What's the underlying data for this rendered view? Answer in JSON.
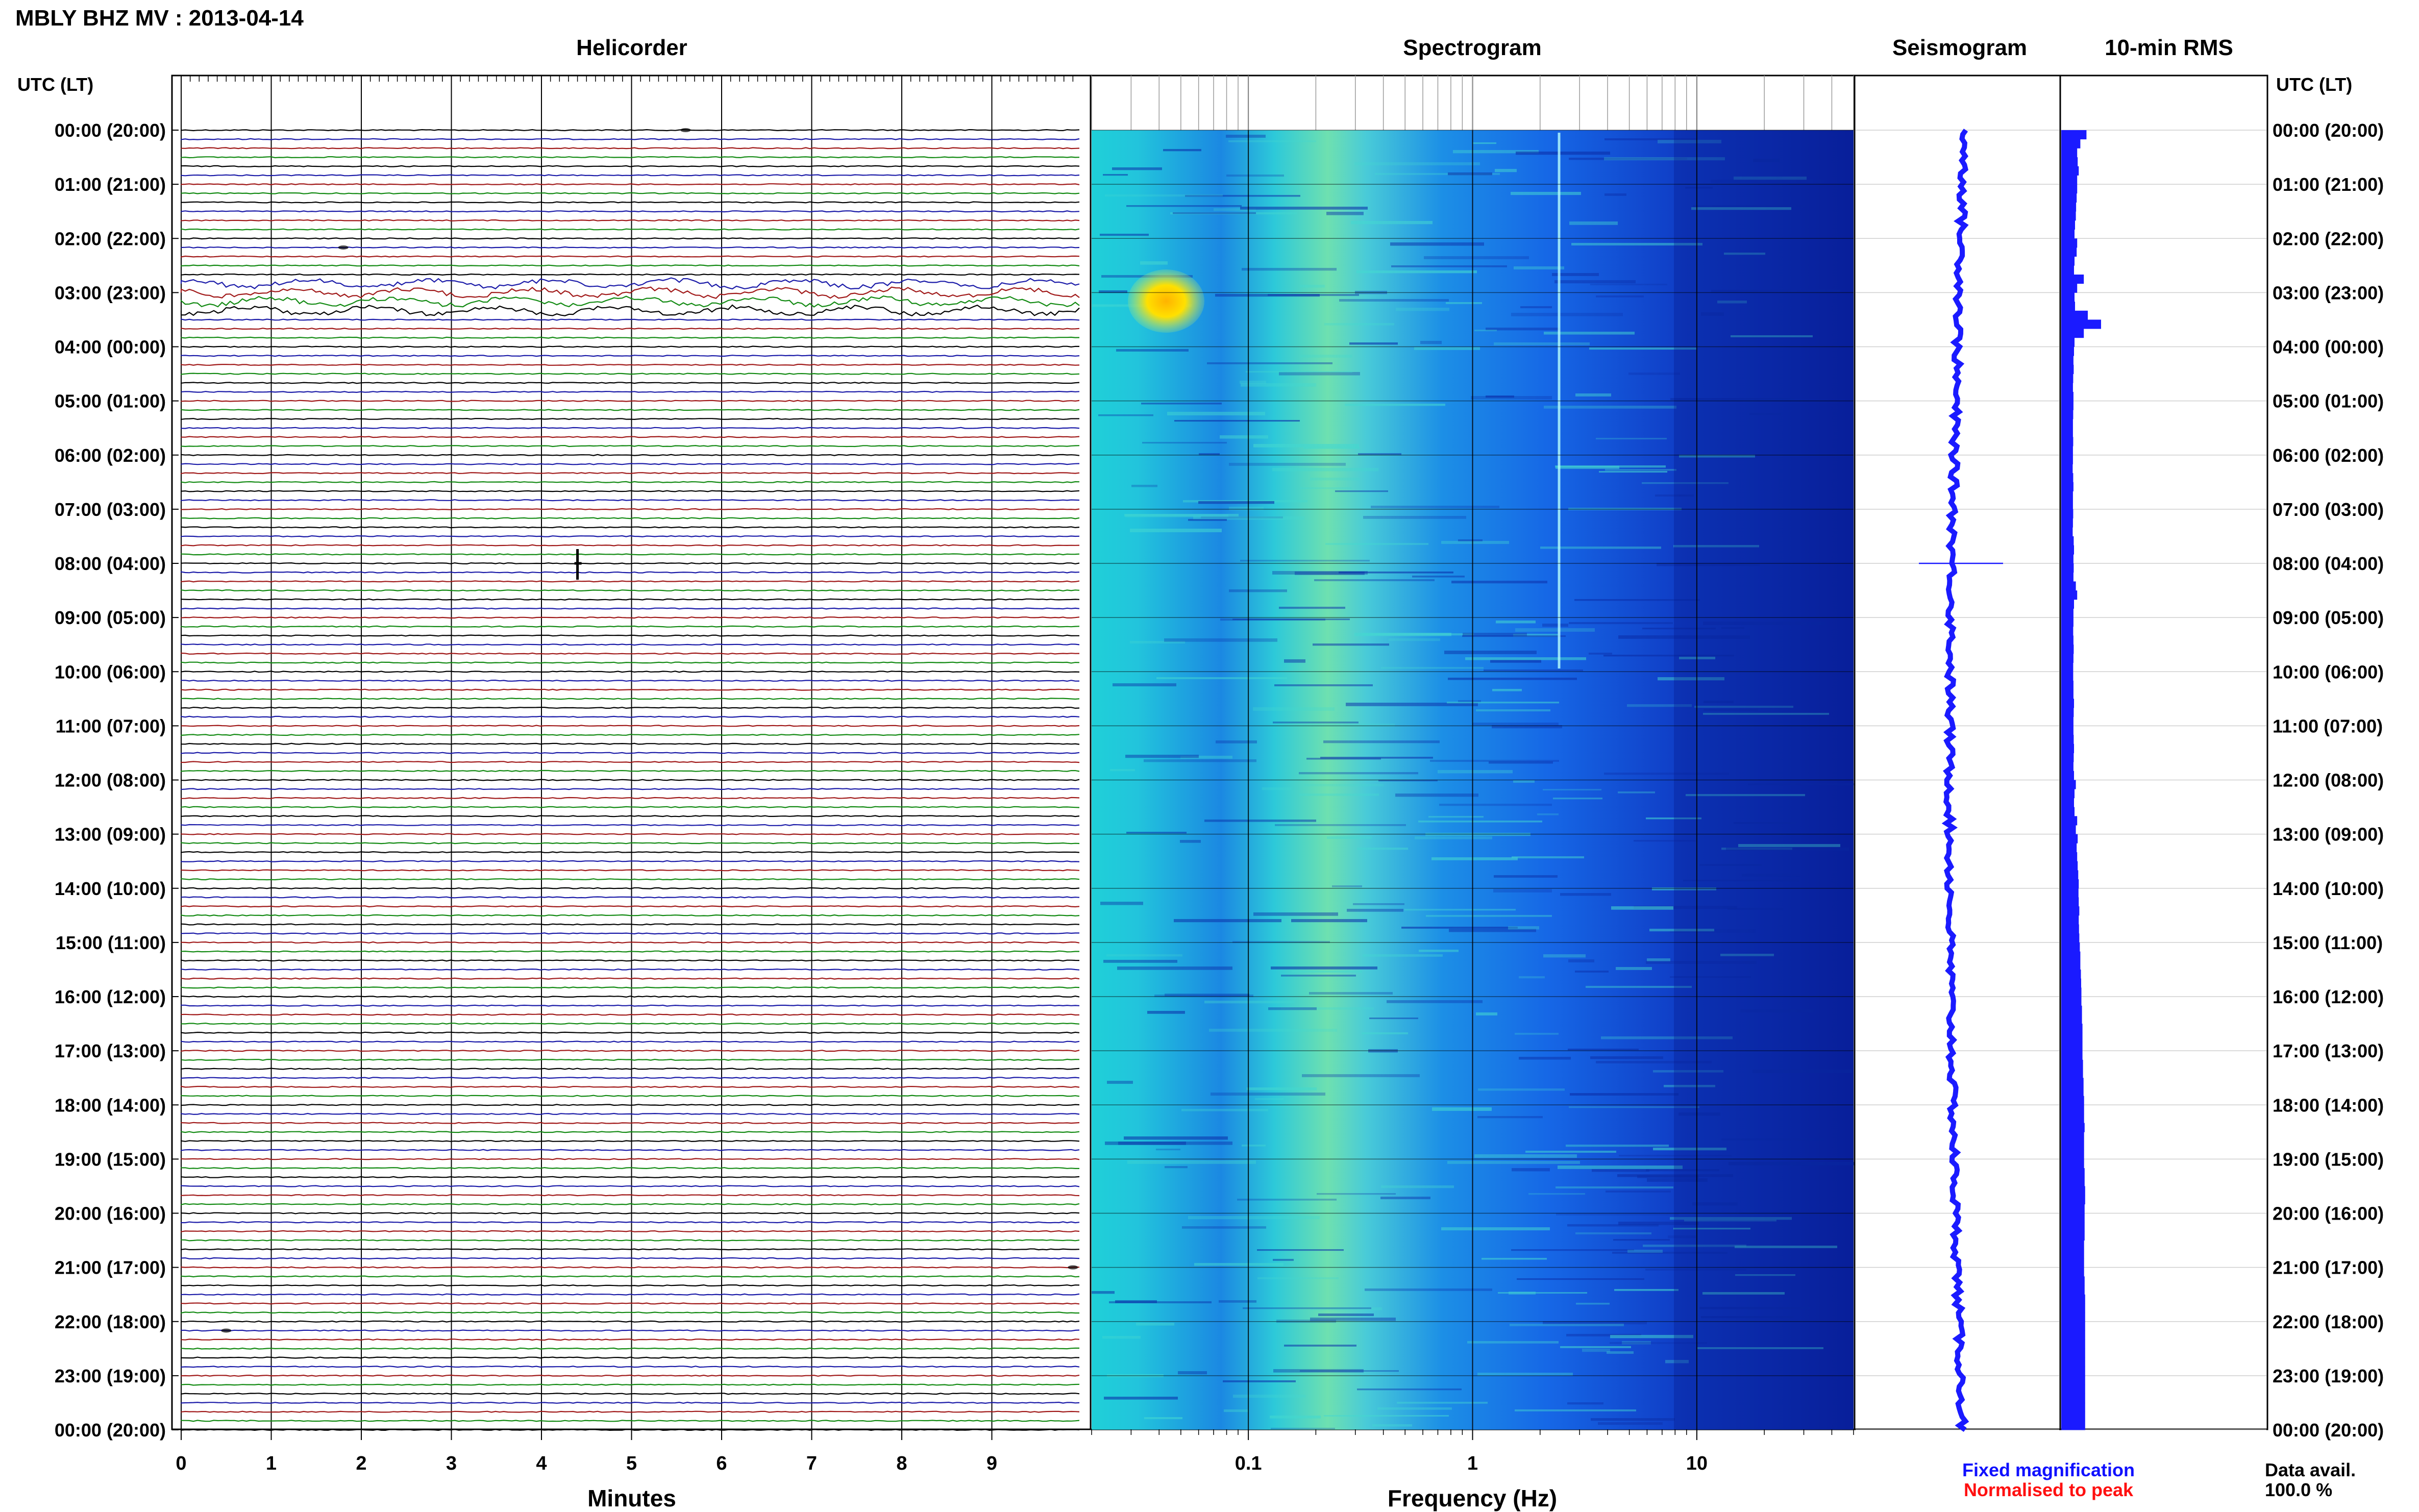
{
  "page": {
    "title": "MBLY BHZ MV : 2013-04-14"
  },
  "panels": {
    "helicorder": "Helicorder",
    "spectrogram": "Spectrogram",
    "seismogram": "Seismogram",
    "rms": "10-min RMS"
  },
  "axis_header_left": "UTC (LT)",
  "axis_header_right": "UTC (LT)",
  "time_labels": [
    "00:00 (20:00)",
    "01:00 (21:00)",
    "02:00 (22:00)",
    "03:00 (23:00)",
    "04:00 (00:00)",
    "05:00 (01:00)",
    "06:00 (02:00)",
    "07:00 (03:00)",
    "08:00 (04:00)",
    "09:00 (05:00)",
    "10:00 (06:00)",
    "11:00 (07:00)",
    "12:00 (08:00)",
    "13:00 (09:00)",
    "14:00 (10:00)",
    "15:00 (11:00)",
    "16:00 (12:00)",
    "17:00 (13:00)",
    "18:00 (14:00)",
    "19:00 (15:00)",
    "20:00 (16:00)",
    "21:00 (17:00)",
    "22:00 (18:00)",
    "23:00 (19:00)",
    "00:00 (20:00)"
  ],
  "minute_ticks": [
    "0",
    "1",
    "2",
    "3",
    "4",
    "5",
    "6",
    "7",
    "8",
    "9"
  ],
  "minutes_label": "Minutes",
  "frequency_ticks": [
    "0.1",
    "1",
    "10"
  ],
  "frequency_label": "Frequency (Hz)",
  "legend": {
    "fixed": "Fixed magnification",
    "normalised": "Normalised to peak",
    "fixed_color": "#1010ff",
    "normalised_color": "#ff1010"
  },
  "data_avail": {
    "label": "Data avail.",
    "value": "100.0 %"
  },
  "colors": {
    "trace_cycle": [
      "#000000",
      "#1a1aa8",
      "#a01818",
      "#128a12"
    ],
    "rms_bar": "#1a1aff",
    "seismogram": "#1a1aff",
    "spectrogram_low": "#00008b",
    "spectrogram_high": "#ffd000"
  },
  "chart_data": [
    {
      "type": "line",
      "title": "Helicorder",
      "xlabel": "Minutes",
      "xlim": [
        0,
        10
      ],
      "rows_per_hour": 6,
      "hours": 24,
      "events": [
        {
          "utc": "00:00",
          "minute": 5.6,
          "amplitude": "small"
        },
        {
          "utc": "02:10",
          "minute": 1.8,
          "amplitude": "small"
        },
        {
          "utc": "03:00",
          "minute": 0,
          "amplitude": "long-period swell"
        },
        {
          "utc": "08:00",
          "minute": 4.4,
          "amplitude": "large"
        },
        {
          "utc": "21:00",
          "minute": 9.9,
          "amplitude": "small"
        },
        {
          "utc": "22:10",
          "minute": 0.5,
          "amplitude": "small"
        }
      ]
    },
    {
      "type": "heatmap",
      "title": "Spectrogram",
      "xlabel": "Frequency (Hz)",
      "xscale": "log",
      "xlim": [
        0.02,
        50
      ],
      "ylim_hours": [
        0,
        24
      ],
      "hotspot": {
        "utc_from": "02:45",
        "utc_to": "03:45",
        "freq_from_hz": 0.03,
        "freq_to_hz": 0.08
      },
      "spectral_line_hz": 2.9
    },
    {
      "type": "line",
      "title": "Seismogram",
      "spike": {
        "utc": "08:00"
      }
    },
    {
      "type": "bar",
      "title": "10-min RMS",
      "bins_per_hour": 6,
      "values": [
        0.95,
        0.72,
        0.6,
        0.62,
        0.66,
        0.6,
        0.6,
        0.58,
        0.56,
        0.55,
        0.52,
        0.5,
        0.6,
        0.58,
        0.5,
        0.48,
        0.85,
        0.6,
        0.5,
        0.52,
        1.0,
        1.5,
        0.85,
        0.5,
        0.48,
        0.46,
        0.47,
        0.45,
        0.44,
        0.46,
        0.46,
        0.45,
        0.44,
        0.44,
        0.45,
        0.44,
        0.44,
        0.43,
        0.45,
        0.46,
        0.44,
        0.44,
        0.45,
        0.44,
        0.43,
        0.47,
        0.48,
        0.46,
        0.47,
        0.46,
        0.55,
        0.6,
        0.48,
        0.46,
        0.46,
        0.45,
        0.46,
        0.47,
        0.46,
        0.45,
        0.45,
        0.46,
        0.46,
        0.48,
        0.47,
        0.46,
        0.46,
        0.47,
        0.48,
        0.47,
        0.46,
        0.48,
        0.55,
        0.5,
        0.48,
        0.5,
        0.6,
        0.55,
        0.62,
        0.58,
        0.6,
        0.62,
        0.64,
        0.66,
        0.65,
        0.66,
        0.68,
        0.66,
        0.67,
        0.68,
        0.7,
        0.72,
        0.72,
        0.74,
        0.75,
        0.76,
        0.76,
        0.78,
        0.78,
        0.8,
        0.8,
        0.8,
        0.8,
        0.82,
        0.82,
        0.84,
        0.84,
        0.86,
        0.86,
        0.86,
        0.88,
        0.86,
        0.86,
        0.86,
        0.86,
        0.88,
        0.88,
        0.9,
        0.9,
        0.88,
        0.88,
        0.88,
        0.88,
        0.86,
        0.86,
        0.86,
        0.86,
        0.88,
        0.88,
        0.9,
        0.9,
        0.9,
        0.9,
        0.9,
        0.9,
        0.9,
        0.9,
        0.9,
        0.9,
        0.9,
        0.9,
        0.9,
        0.9,
        0.9
      ]
    }
  ]
}
